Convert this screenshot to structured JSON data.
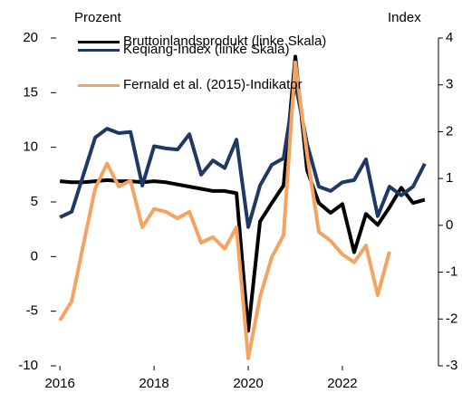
{
  "chart_data": {
    "type": "line",
    "y_label": "Prozent",
    "y2_label": "Index",
    "x": [
      2016.0,
      2016.25,
      2016.5,
      2016.75,
      2017.0,
      2017.25,
      2017.5,
      2017.75,
      2018.0,
      2018.25,
      2018.5,
      2018.75,
      2019.0,
      2019.25,
      2019.5,
      2019.75,
      2020.0,
      2020.25,
      2020.5,
      2020.75,
      2021.0,
      2021.25,
      2021.5,
      2021.75,
      2022.0,
      2022.25,
      2022.5,
      2022.75,
      2023.0,
      2023.25,
      2023.5,
      2023.75
    ],
    "xlim": [
      2015.92,
      2024.04
    ],
    "xticks": [
      2016,
      2018,
      2020,
      2022
    ],
    "ylim": [
      -10,
      20
    ],
    "yticks": [
      -10,
      -5,
      0,
      5,
      10,
      15,
      20
    ],
    "y2lim": [
      -3,
      4
    ],
    "y2ticks": [
      -3,
      -2,
      -1,
      0,
      1,
      2,
      3,
      4
    ],
    "series": [
      {
        "name": "Bruttoinlandsprodukt (linke Skala)",
        "color": "#000000",
        "values": [
          6.9,
          6.8,
          6.8,
          6.9,
          7.0,
          6.9,
          6.9,
          6.8,
          6.9,
          6.8,
          6.6,
          6.4,
          6.2,
          6.0,
          6.0,
          5.8,
          -6.8,
          3.2,
          4.9,
          6.5,
          18.3,
          7.9,
          4.9,
          4.0,
          4.8,
          0.4,
          3.9,
          2.9,
          4.5,
          6.3,
          4.9,
          5.2
        ]
      },
      {
        "name": "Keqiang-Index (linke Skala)",
        "color": "#1f3864",
        "values": [
          3.6,
          4.1,
          7.5,
          10.9,
          11.7,
          11.3,
          11.4,
          6.5,
          10.1,
          9.9,
          9.8,
          11.2,
          7.5,
          8.8,
          8.1,
          10.7,
          2.7,
          6.5,
          8.4,
          9.0,
          15.9,
          10.3,
          6.4,
          6.0,
          6.8,
          7.0,
          8.9,
          3.7,
          6.4,
          5.6,
          6.4,
          8.5
        ]
      },
      {
        "name": "Fernald et al. (2015)-Indikator",
        "color": "#f4a460",
        "axis": "y2",
        "values": [
          -2.03,
          -1.62,
          -0.4,
          0.79,
          1.32,
          0.83,
          0.95,
          -0.04,
          0.35,
          0.29,
          0.15,
          0.29,
          -0.37,
          -0.25,
          -0.5,
          -0.04,
          -2.84,
          -1.53,
          -0.68,
          -0.21,
          3.48,
          1.51,
          -0.14,
          -0.33,
          -0.62,
          -0.79,
          -0.43,
          -1.49,
          -0.56,
          null,
          null,
          null
        ]
      }
    ]
  }
}
